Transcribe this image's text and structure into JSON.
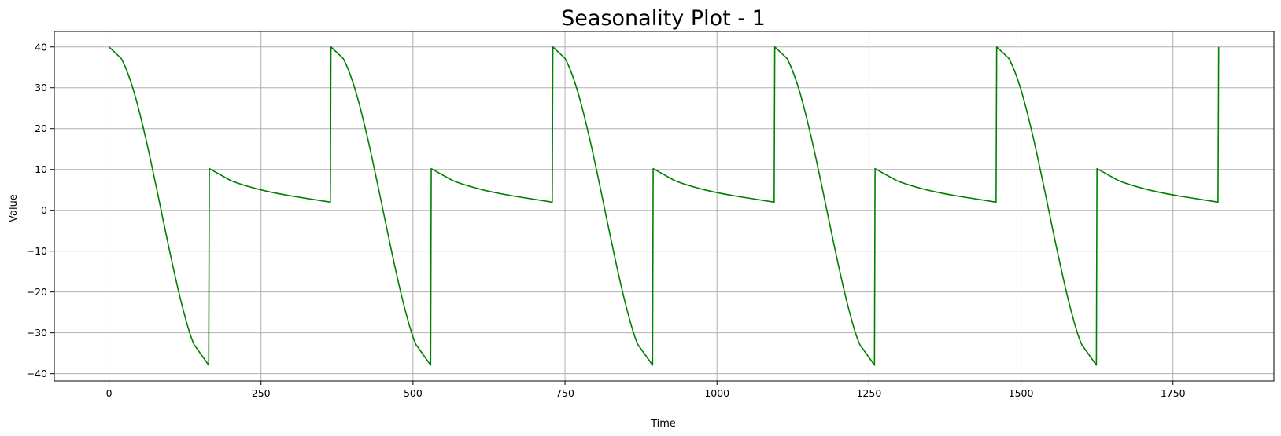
{
  "chart_data": {
    "type": "line",
    "title": "Seasonality Plot - 1",
    "xlabel": "Time",
    "ylabel": "Value",
    "xlim": [
      -90,
      1916
    ],
    "ylim": [
      -41.8,
      43.8
    ],
    "grid": true,
    "line_color": "#008000",
    "xticks": [
      0,
      250,
      500,
      750,
      1000,
      1250,
      1500,
      1750
    ],
    "xtick_labels": [
      "0",
      "250",
      "500",
      "750",
      "1000",
      "1250",
      "1500",
      "1750"
    ],
    "yticks": [
      -40,
      -30,
      -20,
      -10,
      0,
      10,
      20,
      30,
      40
    ],
    "ytick_labels": [
      "−40",
      "−30",
      "−20",
      "−10",
      "0",
      "10",
      "20",
      "30",
      "40"
    ],
    "series": [
      {
        "x": [
          0,
          20,
          40,
          60,
          80,
          100,
          120,
          140,
          164,
          165,
          200,
          250,
          300,
          364,
          365,
          385,
          405,
          425,
          445,
          465,
          485,
          505,
          529,
          530,
          565,
          615,
          665,
          729,
          730,
          750,
          770,
          790,
          810,
          830,
          850,
          870,
          894,
          895,
          930,
          980,
          1030,
          1094,
          1095,
          1115,
          1135,
          1155,
          1175,
          1195,
          1215,
          1235,
          1259,
          1260,
          1295,
          1345,
          1395,
          1459,
          1460,
          1480,
          1500,
          1520,
          1540,
          1560,
          1580,
          1600,
          1624,
          1625,
          1660,
          1710,
          1760,
          1824,
          1825
        ],
        "y": [
          40,
          37.2,
          29.5,
          17.9,
          4.1,
          -10.2,
          -23.2,
          -32.9,
          -37.9,
          10.2,
          7.3,
          5.0,
          3.5,
          2.0,
          40,
          37.2,
          29.5,
          17.9,
          4.1,
          -10.2,
          -23.2,
          -32.9,
          -37.9,
          10.2,
          7.3,
          5.0,
          3.5,
          2.0,
          40,
          37.2,
          29.5,
          17.9,
          4.1,
          -10.2,
          -23.2,
          -32.9,
          -37.9,
          10.2,
          7.3,
          5.0,
          3.5,
          2.0,
          40,
          37.2,
          29.5,
          17.9,
          4.1,
          -10.2,
          -23.2,
          -32.9,
          -37.9,
          10.2,
          7.3,
          5.0,
          3.5,
          2.0,
          40,
          37.2,
          29.5,
          17.9,
          4.1,
          -10.2,
          -23.2,
          -32.9,
          -37.9,
          10.2,
          7.3,
          5.0,
          3.5,
          2.0,
          40
        ]
      }
    ]
  }
}
